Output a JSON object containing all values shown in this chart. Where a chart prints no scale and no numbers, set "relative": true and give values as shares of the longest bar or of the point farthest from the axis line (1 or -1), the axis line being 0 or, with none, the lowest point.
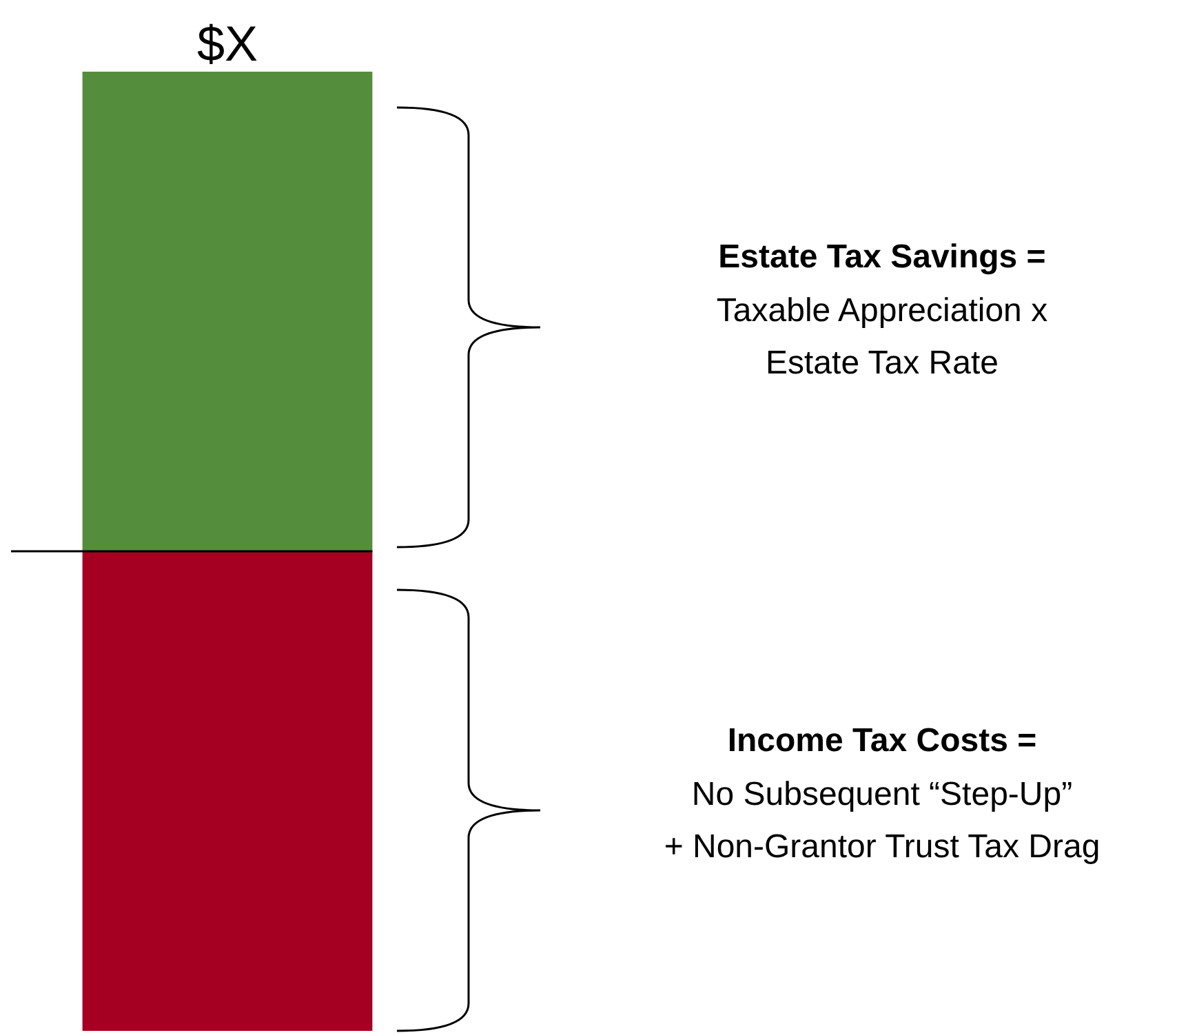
{
  "chart_data": {
    "type": "bar",
    "relative": true,
    "stacked": true,
    "categories": [
      null
    ],
    "series": [
      {
        "color": "#a50021",
        "values": [
          0.5
        ]
      },
      {
        "color": "#548e3c",
        "values": [
          0.5
        ]
      }
    ],
    "legend": false,
    "ref_lines": [
      {
        "axis": "y",
        "value": 0.5,
        "color": "#000000"
      }
    ],
    "annotations": [
      "$X",
      "Estate Tax Savings =",
      "Taxable Appreciation x",
      "Estate Tax Rate",
      "Income Tax Costs =",
      "No Subsequent “Step-Up”",
      "+ Non-Grantor Trust Tax Drag"
    ]
  }
}
